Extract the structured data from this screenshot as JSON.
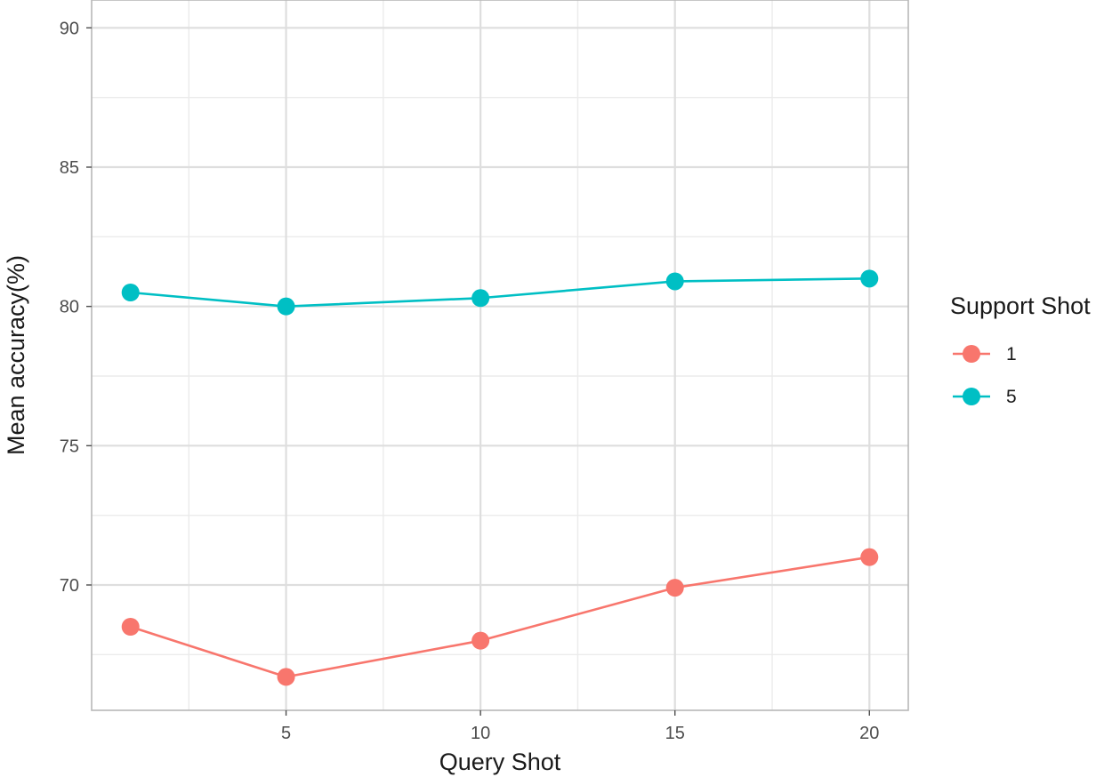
{
  "chart_data": {
    "type": "line",
    "title": "",
    "xlabel": "Query Shot",
    "ylabel": "Mean accuracy(%)",
    "xlim": [
      0,
      21
    ],
    "ylim": [
      65.5,
      91
    ],
    "x_ticks": [
      5,
      10,
      15,
      20
    ],
    "y_ticks": [
      70,
      75,
      80,
      85,
      90
    ],
    "x_minor": [
      2.5,
      7.5,
      12.5,
      17.5
    ],
    "y_minor": [
      67.5,
      72.5,
      77.5,
      82.5,
      87.5
    ],
    "grid": true,
    "legend": {
      "title": "Support Shot",
      "position": "right"
    },
    "x": [
      1,
      5,
      10,
      15,
      20
    ],
    "series": [
      {
        "name": "1",
        "color": "#F8766D",
        "values": [
          68.5,
          66.7,
          68.0,
          69.9,
          71.0
        ]
      },
      {
        "name": "5",
        "color": "#00BFC4",
        "values": [
          80.5,
          80.0,
          80.3,
          80.9,
          81.0
        ]
      }
    ]
  }
}
